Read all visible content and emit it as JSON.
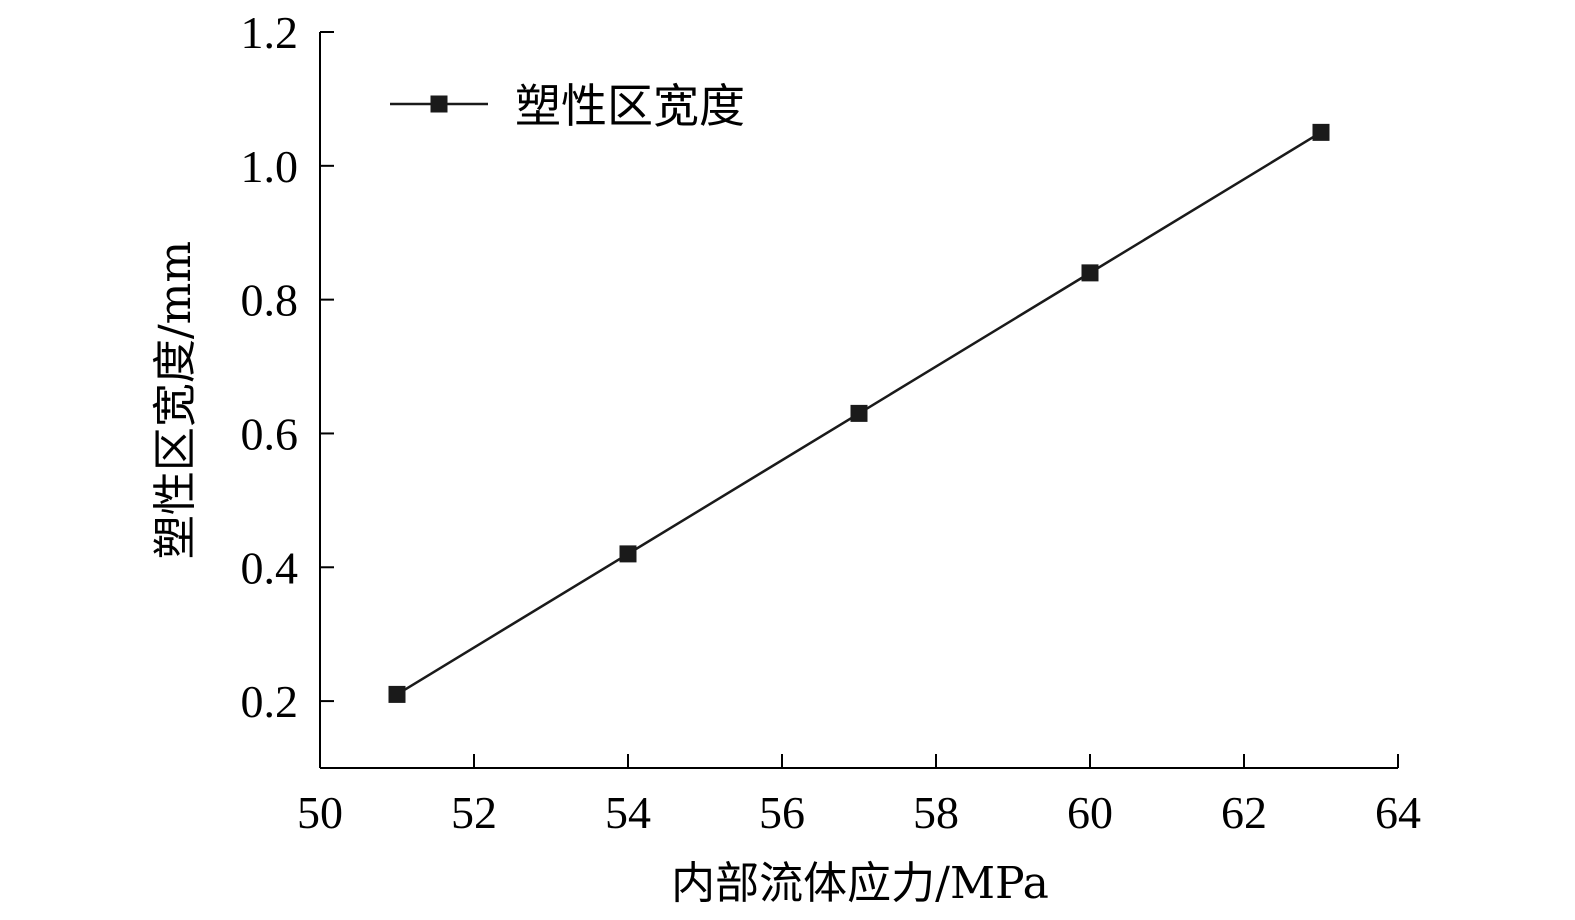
{
  "chart_data": {
    "type": "line",
    "title": "",
    "xlabel": "内部流体应力/MPa",
    "ylabel": "塑性区宽度/mm",
    "xlim": [
      50,
      64
    ],
    "ylim": [
      0.1,
      1.2
    ],
    "xticks": [
      50,
      52,
      54,
      56,
      58,
      60,
      62,
      64
    ],
    "yticks": [
      0.2,
      0.4,
      0.6,
      0.8,
      1.0,
      1.2
    ],
    "xtick_labels": [
      "50",
      "52",
      "54",
      "56",
      "58",
      "60",
      "62",
      "64"
    ],
    "ytick_labels": [
      "0.2",
      "0.4",
      "0.6",
      "0.8",
      "1.0",
      "1.2"
    ],
    "grid": false,
    "legend_position": "top-left",
    "series": [
      {
        "name": "塑性区宽度",
        "marker": "square",
        "color": "#1a1a1a",
        "x": [
          51,
          54,
          57,
          60,
          63
        ],
        "y": [
          0.21,
          0.42,
          0.63,
          0.84,
          1.05
        ]
      }
    ]
  }
}
